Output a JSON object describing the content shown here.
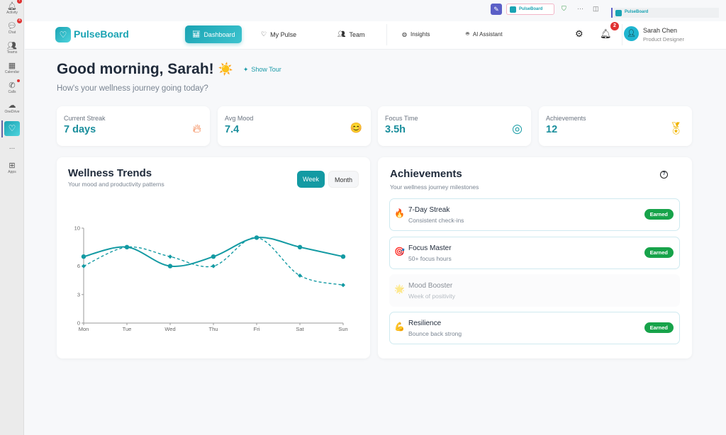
{
  "rail": {
    "items": [
      {
        "label": "Activity",
        "icon": "bell-icon",
        "badge": "7"
      },
      {
        "label": "Chat",
        "icon": "chat-icon",
        "badge": "4"
      },
      {
        "label": "Teams",
        "icon": "teams-icon"
      },
      {
        "label": "Calendar",
        "icon": "calendar-icon"
      },
      {
        "label": "Calls",
        "icon": "phone-icon"
      },
      {
        "label": "OneDrive",
        "icon": "cloud-icon"
      }
    ],
    "more": "...",
    "apps": "Apps"
  },
  "topbar": {
    "tab": "PulseBoard",
    "side_tab": "PulseBoard"
  },
  "header": {
    "brand": "PulseBoard",
    "nav": [
      "Dashboard",
      "My Pulse",
      "Team",
      "Insights",
      "AI Assistant"
    ],
    "notifications": "2",
    "user_name": "Sarah Chen",
    "user_role": "Product Designer"
  },
  "greeting": {
    "title": "Good morning, Sarah!",
    "emoji": "☀️",
    "tour": "Show Tour",
    "subtitle": "How's your wellness journey going today?"
  },
  "stats": [
    {
      "label": "Current Streak",
      "value": "7 days",
      "icon": "flame-icon"
    },
    {
      "label": "Avg Mood",
      "value": "7.4",
      "icon": "smile-icon"
    },
    {
      "label": "Focus Time",
      "value": "3.5h",
      "icon": "target-icon"
    },
    {
      "label": "Achievements",
      "value": "12",
      "icon": "award-icon"
    }
  ],
  "trends": {
    "title": "Wellness Trends",
    "subtitle": "Your mood and productivity patterns",
    "toggle": [
      "Week",
      "Month"
    ],
    "active": "Week"
  },
  "chart_data": {
    "type": "line",
    "categories": [
      "Mon",
      "Tue",
      "Wed",
      "Thu",
      "Fri",
      "Sat",
      "Sun"
    ],
    "series": [
      {
        "values": [
          7,
          8,
          6,
          7,
          9,
          8,
          7
        ],
        "style": "solid"
      },
      {
        "values": [
          6,
          8,
          7,
          6,
          9,
          5,
          4
        ],
        "style": "dashed"
      }
    ],
    "ylim": [
      0,
      10
    ],
    "yticks": [
      "0",
      "3",
      "6",
      "10"
    ],
    "grid": false,
    "color": "#139aa3"
  },
  "achievements": {
    "title": "Achievements",
    "subtitle": "Your wellness journey milestones",
    "items": [
      {
        "emoji": "🔥",
        "title": "7-Day Streak",
        "desc": "Consistent check-ins",
        "status": "Earned"
      },
      {
        "emoji": "🎯",
        "title": "Focus Master",
        "desc": "50+ focus hours",
        "status": "Earned"
      },
      {
        "emoji": "🌟",
        "title": "Mood Booster",
        "desc": "Week of positivity",
        "status": ""
      },
      {
        "emoji": "💪",
        "title": "Resilience",
        "desc": "Bounce back strong",
        "status": "Earned"
      }
    ]
  }
}
